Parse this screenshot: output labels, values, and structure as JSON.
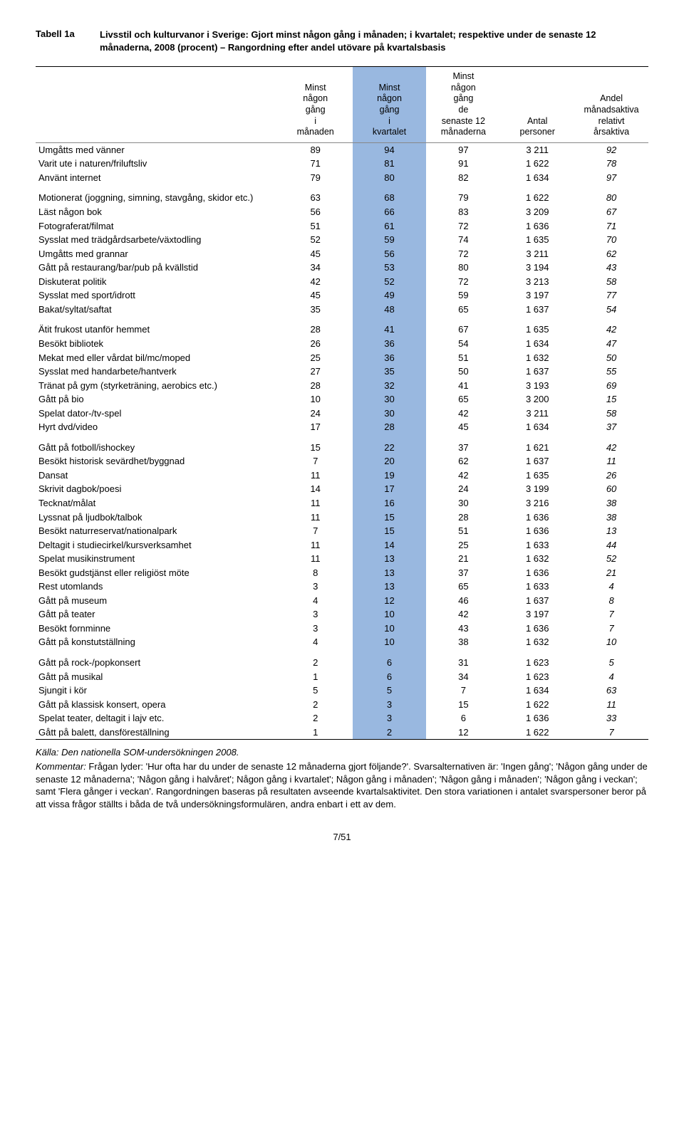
{
  "title": {
    "label": "Tabell 1a",
    "text": "Livsstil och kulturvanor i Sverige: Gjort minst någon gång i månaden; i kvartalet; respektive under de senaste 12 månaderna, 2008 (procent) – Rangordning efter andel utövare på kvartalsbasis"
  },
  "headers": [
    "",
    "Minst någon gång i månaden",
    "Minst någon gång i kvartalet",
    "Minst någon gång de senaste 12 månaderna",
    "Antal personer",
    "Andel månadsaktiva relativt årsaktiva"
  ],
  "hl_col_index": 2,
  "groups": [
    [
      {
        "label": "Umgåtts med vänner",
        "v": [
          89,
          94,
          97,
          "3 211",
          92
        ]
      },
      {
        "label": "Varit ute i naturen/friluftsliv",
        "v": [
          71,
          81,
          91,
          "1 622",
          78
        ]
      },
      {
        "label": "Använt internet",
        "v": [
          79,
          80,
          82,
          "1 634",
          97
        ]
      }
    ],
    [
      {
        "label": "Motionerat (joggning, simning, stavgång, skidor etc.)",
        "v": [
          63,
          68,
          79,
          "1 622",
          80
        ]
      },
      {
        "label": "Läst någon bok",
        "v": [
          56,
          66,
          83,
          "3 209",
          67
        ]
      },
      {
        "label": "Fotograferat/filmat",
        "v": [
          51,
          61,
          72,
          "1 636",
          71
        ]
      },
      {
        "label": "Sysslat med trädgårdsarbete/växtodling",
        "v": [
          52,
          59,
          74,
          "1 635",
          70
        ]
      },
      {
        "label": "Umgåtts med grannar",
        "v": [
          45,
          56,
          72,
          "3 211",
          62
        ]
      },
      {
        "label": "Gått på restaurang/bar/pub på kvällstid",
        "v": [
          34,
          53,
          80,
          "3 194",
          43
        ]
      },
      {
        "label": "Diskuterat politik",
        "v": [
          42,
          52,
          72,
          "3 213",
          58
        ]
      },
      {
        "label": "Sysslat med sport/idrott",
        "v": [
          45,
          49,
          59,
          "3 197",
          77
        ]
      },
      {
        "label": "Bakat/syltat/saftat",
        "v": [
          35,
          48,
          65,
          "1 637",
          54
        ]
      }
    ],
    [
      {
        "label": "Ätit frukost utanför hemmet",
        "v": [
          28,
          41,
          67,
          "1 635",
          42
        ]
      },
      {
        "label": "Besökt bibliotek",
        "v": [
          26,
          36,
          54,
          "1 634",
          47
        ]
      },
      {
        "label": "Mekat med eller vårdat bil/mc/moped",
        "v": [
          25,
          36,
          51,
          "1 632",
          50
        ]
      },
      {
        "label": "Sysslat med handarbete/hantverk",
        "v": [
          27,
          35,
          50,
          "1 637",
          55
        ]
      },
      {
        "label": "Tränat på gym (styrketräning, aerobics etc.)",
        "v": [
          28,
          32,
          41,
          "3 193",
          69
        ]
      },
      {
        "label": "Gått på bio",
        "v": [
          10,
          30,
          65,
          "3 200",
          15
        ]
      },
      {
        "label": "Spelat dator-/tv-spel",
        "v": [
          24,
          30,
          42,
          "3 211",
          58
        ]
      },
      {
        "label": "Hyrt dvd/video",
        "v": [
          17,
          28,
          45,
          "1 634",
          37
        ]
      }
    ],
    [
      {
        "label": "Gått på fotboll/ishockey",
        "v": [
          15,
          22,
          37,
          "1 621",
          42
        ]
      },
      {
        "label": "Besökt historisk sevärdhet/byggnad",
        "v": [
          7,
          20,
          62,
          "1 637",
          11
        ]
      },
      {
        "label": "Dansat",
        "v": [
          11,
          19,
          42,
          "1 635",
          26
        ]
      },
      {
        "label": "Skrivit dagbok/poesi",
        "v": [
          14,
          17,
          24,
          "3 199",
          60
        ]
      },
      {
        "label": "Tecknat/målat",
        "v": [
          11,
          16,
          30,
          "3 216",
          38
        ]
      },
      {
        "label": "Lyssnat på ljudbok/talbok",
        "v": [
          11,
          15,
          28,
          "1 636",
          38
        ]
      },
      {
        "label": "Besökt naturreservat/nationalpark",
        "v": [
          7,
          15,
          51,
          "1 636",
          13
        ]
      },
      {
        "label": "Deltagit i studiecirkel/kursverksamhet",
        "v": [
          11,
          14,
          25,
          "1 633",
          44
        ]
      },
      {
        "label": "Spelat musikinstrument",
        "v": [
          11,
          13,
          21,
          "1 632",
          52
        ]
      },
      {
        "label": "Besökt gudstjänst eller religiöst möte",
        "v": [
          8,
          13,
          37,
          "1 636",
          21
        ]
      },
      {
        "label": "Rest utomlands",
        "v": [
          3,
          13,
          65,
          "1 633",
          4
        ]
      },
      {
        "label": "Gått på museum",
        "v": [
          4,
          12,
          46,
          "1 637",
          8
        ]
      },
      {
        "label": "Gått på teater",
        "v": [
          3,
          10,
          42,
          "3 197",
          7
        ]
      },
      {
        "label": "Besökt fornminne",
        "v": [
          3,
          10,
          43,
          "1 636",
          7
        ]
      },
      {
        "label": "Gått på konstutställning",
        "v": [
          4,
          10,
          38,
          "1 632",
          10
        ]
      }
    ],
    [
      {
        "label": "Gått på rock-/popkonsert",
        "v": [
          2,
          6,
          31,
          "1 623",
          5
        ]
      },
      {
        "label": "Gått på musikal",
        "v": [
          1,
          6,
          34,
          "1 623",
          4
        ]
      },
      {
        "label": "Sjungit i kör",
        "v": [
          5,
          5,
          7,
          "1 634",
          63
        ]
      },
      {
        "label": "Gått på klassisk konsert, opera",
        "v": [
          2,
          3,
          15,
          "1 622",
          11
        ]
      },
      {
        "label": "Spelat teater, deltagit i lajv etc.",
        "v": [
          2,
          3,
          6,
          "1 636",
          33
        ]
      },
      {
        "label": "Gått på balett, dansföreställning",
        "v": [
          1,
          2,
          12,
          "1 622",
          7
        ]
      }
    ]
  ],
  "source": "Källa: Den nationella SOM-undersökningen 2008.",
  "comment_lead": "Kommentar:",
  "comment_text": " Frågan lyder: 'Hur ofta har du under de senaste 12 månaderna gjort följande?'. Svarsalternativen är: 'Ingen gång'; 'Någon gång under de senaste 12 månaderna'; 'Någon gång i halvåret'; Någon gång i kvartalet'; Någon gång i månaden'; 'Någon gång i månaden'; 'Någon gång i veckan'; samt 'Flera gånger i veckan'. Rangordningen baseras på resultaten avseende kvartalsaktivitet. Den stora variationen i antalet svarspersoner beror på att vissa frågor ställts i båda de två undersökningsformulären, andra enbart i ett av dem.",
  "page": "7/51"
}
